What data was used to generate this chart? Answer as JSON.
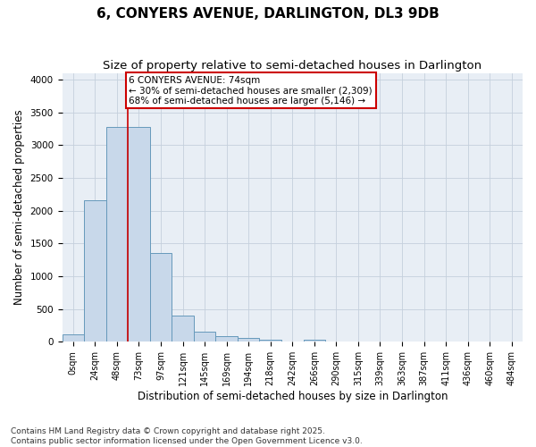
{
  "title": "6, CONYERS AVENUE, DARLINGTON, DL3 9DB",
  "subtitle": "Size of property relative to semi-detached houses in Darlington",
  "xlabel": "Distribution of semi-detached houses by size in Darlington",
  "ylabel": "Number of semi-detached properties",
  "bin_labels": [
    "0sqm",
    "24sqm",
    "48sqm",
    "73sqm",
    "97sqm",
    "121sqm",
    "145sqm",
    "169sqm",
    "194sqm",
    "218sqm",
    "242sqm",
    "266sqm",
    "290sqm",
    "315sqm",
    "339sqm",
    "363sqm",
    "387sqm",
    "411sqm",
    "436sqm",
    "460sqm",
    "484sqm"
  ],
  "bar_values": [
    110,
    2160,
    3280,
    3280,
    1350,
    400,
    160,
    90,
    65,
    35,
    10,
    30,
    0,
    0,
    0,
    0,
    0,
    0,
    0,
    0,
    0
  ],
  "bar_color": "#c8d8ea",
  "bar_edge_color": "#6699bb",
  "grid_color": "#c5d0dc",
  "background_color": "#e8eef5",
  "fig_background": "#ffffff",
  "red_line_x": 2.5,
  "annotation_text": "6 CONYERS AVENUE: 74sqm\n← 30% of semi-detached houses are smaller (2,309)\n68% of semi-detached houses are larger (5,146) →",
  "annotation_box_color": "#ffffff",
  "annotation_box_edge": "#cc0000",
  "ylim": [
    0,
    4100
  ],
  "yticks": [
    0,
    500,
    1000,
    1500,
    2000,
    2500,
    3000,
    3500,
    4000
  ],
  "footer": "Contains HM Land Registry data © Crown copyright and database right 2025.\nContains public sector information licensed under the Open Government Licence v3.0.",
  "title_fontsize": 11,
  "subtitle_fontsize": 9.5,
  "label_fontsize": 8.5,
  "tick_fontsize": 7,
  "footer_fontsize": 6.5,
  "annot_fontsize": 7.5
}
